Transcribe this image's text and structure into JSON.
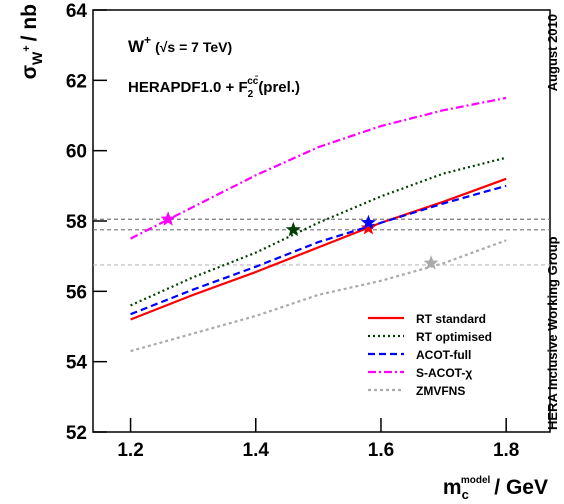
{
  "chart_data": {
    "type": "line",
    "title_parts": [
      "W",
      "+",
      "(√s = 7 TeV)"
    ],
    "subtitle_parts": [
      "HERAPDF1.0 + F",
      "2",
      "cc̄",
      "(prel.)"
    ],
    "ylabel_parts": [
      "σ",
      "W",
      "+",
      "/ nb"
    ],
    "xlabel_parts": [
      "m",
      "c",
      "model",
      "/ GeV"
    ],
    "side_labels": [
      "August 2010",
      "HERA Inclusive Working Group"
    ],
    "x": [
      1.2,
      1.3,
      1.4,
      1.5,
      1.6,
      1.7,
      1.8
    ],
    "series": [
      {
        "name": "RT standard",
        "color": "#ff0000",
        "dash": "none",
        "values": [
          55.2,
          55.9,
          56.55,
          57.25,
          57.95,
          58.55,
          59.2
        ],
        "star_x": 1.58,
        "star_y": 57.8
      },
      {
        "name": "RT optimised",
        "color": "#004000",
        "dash": "2,3",
        "values": [
          55.6,
          56.4,
          57.1,
          57.95,
          58.7,
          59.35,
          59.8
        ],
        "star_x": 1.46,
        "star_y": 57.75
      },
      {
        "name": "ACOT-full",
        "color": "#0000ff",
        "dash": "7,4",
        "values": [
          55.35,
          56.05,
          56.7,
          57.4,
          57.95,
          58.5,
          59.0
        ],
        "star_x": 1.58,
        "star_y": 57.95
      },
      {
        "name": "S-ACOT-χ",
        "color": "#ff00ff",
        "dash": "8,3,2,3",
        "values": [
          57.5,
          58.4,
          59.3,
          60.1,
          60.7,
          61.15,
          61.5
        ],
        "star_x": 1.26,
        "star_y": 58.05
      },
      {
        "name": "ZMVFNS",
        "color": "#aaaaaa",
        "dash": "3,3",
        "values": [
          54.3,
          54.8,
          55.3,
          55.9,
          56.3,
          56.8,
          57.45
        ],
        "star_x": 1.68,
        "star_y": 56.8
      }
    ],
    "hlines": [
      {
        "value": 58.05,
        "color": "#777777"
      },
      {
        "value": 57.75,
        "color": "#777777"
      },
      {
        "value": 56.75,
        "color": "#bbbbbb"
      }
    ],
    "xlim": [
      1.14,
      1.87
    ],
    "ylim": [
      52,
      64
    ],
    "xticks": [
      1.2,
      1.4,
      1.6,
      1.8
    ],
    "yticks": [
      52,
      54,
      56,
      58,
      60,
      62,
      64
    ],
    "legend": "lower right"
  }
}
